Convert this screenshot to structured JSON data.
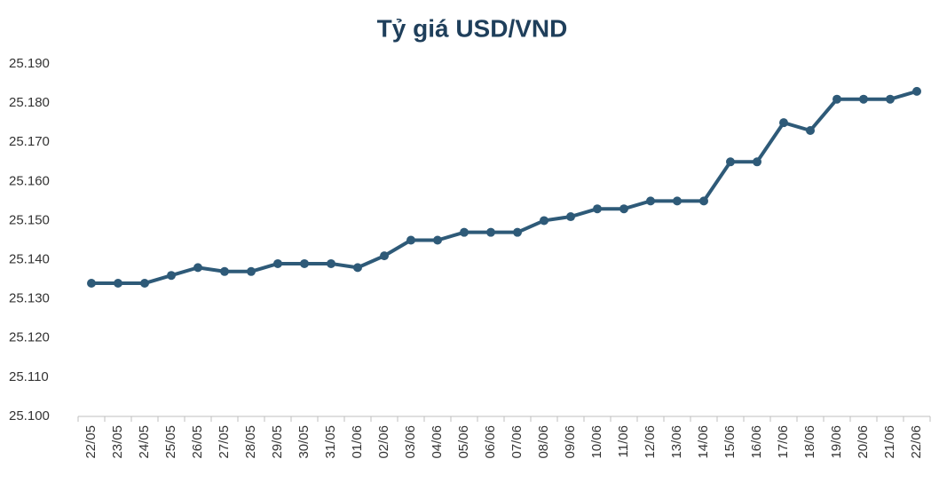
{
  "chart_data": {
    "type": "line",
    "title": "Tỷ giá USD/VND",
    "categories": [
      "22/05",
      "23/05",
      "24/05",
      "25/05",
      "26/05",
      "27/05",
      "28/05",
      "29/05",
      "30/05",
      "31/05",
      "01/06",
      "02/06",
      "03/06",
      "04/06",
      "05/06",
      "06/06",
      "07/06",
      "08/06",
      "09/06",
      "10/06",
      "11/06",
      "12/06",
      "13/06",
      "14/06",
      "15/06",
      "16/06",
      "17/06",
      "18/06",
      "19/06",
      "20/06",
      "21/06",
      "22/06"
    ],
    "series": [
      {
        "color": "#2e5a78",
        "values": [
          25134,
          25134,
          25134,
          25136,
          25138,
          25137,
          25137,
          25139,
          25139,
          25139,
          25138,
          25141,
          25145,
          25145,
          25147,
          25147,
          25147,
          25150,
          25151,
          25153,
          25153,
          25155,
          25155,
          25155,
          25165,
          25165,
          25175,
          25173,
          25181,
          25181,
          25181,
          25183
        ]
      }
    ],
    "ylim": [
      25100,
      25190
    ],
    "yticks": [
      {
        "value": 25100,
        "label": "25.100"
      },
      {
        "value": 25110,
        "label": "25.110"
      },
      {
        "value": 25120,
        "label": "25.120"
      },
      {
        "value": 25130,
        "label": "25.130"
      },
      {
        "value": 25140,
        "label": "25.140"
      },
      {
        "value": 25150,
        "label": "25.150"
      },
      {
        "value": 25160,
        "label": "25.160"
      },
      {
        "value": 25170,
        "label": "25.170"
      },
      {
        "value": 25180,
        "label": "25.180"
      },
      {
        "value": 25190,
        "label": "25.190"
      }
    ]
  }
}
